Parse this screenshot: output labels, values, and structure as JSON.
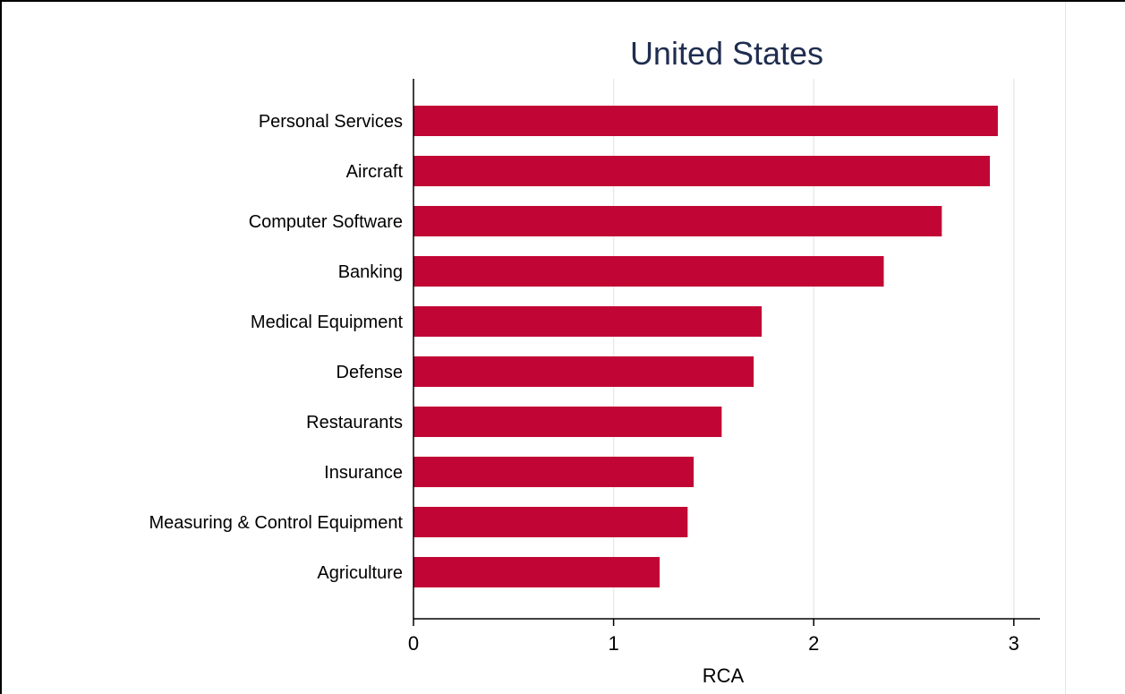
{
  "chart_data": {
    "type": "bar",
    "orientation": "horizontal",
    "title": "United States",
    "xlabel": "RCA",
    "ylabel": "",
    "categories": [
      "Personal Services",
      "Aircraft",
      "Computer Software",
      "Banking",
      "Medical Equipment",
      "Defense",
      "Restaurants",
      "Insurance",
      "Measuring & Control Equipment",
      "Agriculture"
    ],
    "values": [
      2.92,
      2.88,
      2.64,
      2.35,
      1.74,
      1.7,
      1.54,
      1.4,
      1.37,
      1.23
    ],
    "xticks": [
      0,
      1,
      2,
      3
    ],
    "xlim": [
      0,
      3.13
    ],
    "grid": true,
    "legend": "none",
    "colors": {
      "bar": "#c10534",
      "grid": "#e6ecea",
      "title": "#1f2d4f"
    }
  }
}
